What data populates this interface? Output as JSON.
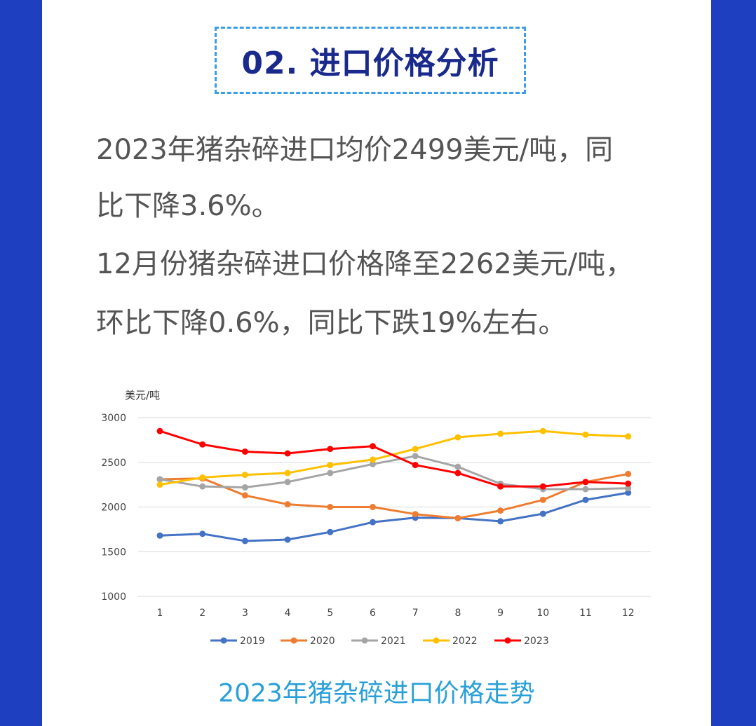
{
  "section": {
    "title": "02. 进口价格分析"
  },
  "paragraphs": [
    "2023年猪杂碎进口均价2499美元/吨，同",
    "比下降3.6%。",
    "12月份猪杂碎进口价格降至2262美元/吨，",
    "环比下降0.6%，同比下跌19%左右。"
  ],
  "chart_data": {
    "type": "line",
    "title": "",
    "ylabel": "美元/吨",
    "xlabel": "",
    "x": [
      1,
      2,
      3,
      4,
      5,
      6,
      7,
      8,
      9,
      10,
      11,
      12
    ],
    "ylim": [
      1000,
      3000
    ],
    "yticks": [
      1000,
      1500,
      2000,
      2500,
      3000
    ],
    "grid": true,
    "legend": "bottom",
    "series": [
      {
        "name": "2019",
        "color": "#4472c4",
        "values": [
          1680,
          1700,
          1620,
          1635,
          1720,
          1830,
          1880,
          1875,
          1840,
          1925,
          2080,
          2160
        ]
      },
      {
        "name": "2020",
        "color": "#ed7d31",
        "values": [
          2310,
          2320,
          2130,
          2030,
          2000,
          2000,
          1920,
          1875,
          1960,
          2080,
          2280,
          2370
        ]
      },
      {
        "name": "2021",
        "color": "#a5a5a5",
        "values": [
          2310,
          2230,
          2220,
          2280,
          2380,
          2480,
          2570,
          2450,
          2260,
          2200,
          2200,
          2210
        ]
      },
      {
        "name": "2022",
        "color": "#ffc000",
        "values": [
          2250,
          2330,
          2360,
          2380,
          2470,
          2530,
          2650,
          2780,
          2820,
          2850,
          2810,
          2790
        ]
      },
      {
        "name": "2023",
        "color": "#ff0000",
        "values": [
          2850,
          2700,
          2620,
          2600,
          2650,
          2680,
          2470,
          2380,
          2230,
          2230,
          2280,
          2262
        ]
      }
    ]
  },
  "caption": "2023年猪杂碎进口价格走势"
}
